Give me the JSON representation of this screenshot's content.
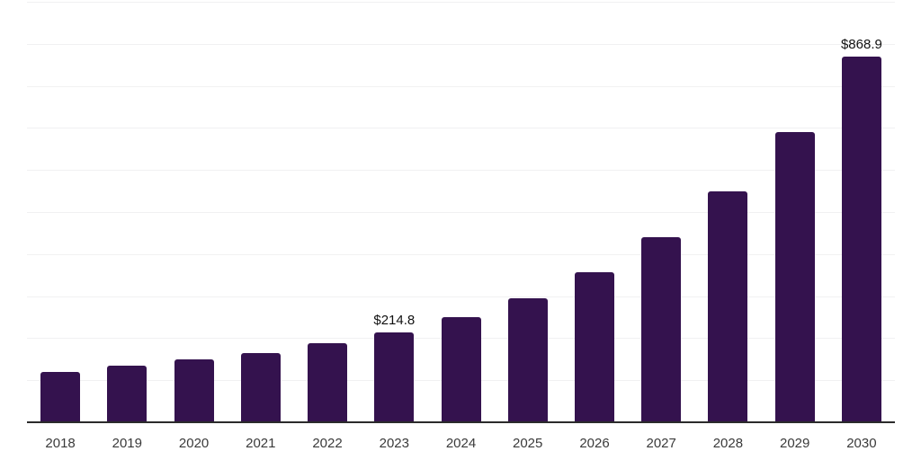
{
  "chart_data": {
    "type": "bar",
    "title": "",
    "xlabel": "",
    "ylabel": "",
    "categories": [
      "2018",
      "2019",
      "2020",
      "2021",
      "2022",
      "2023",
      "2024",
      "2025",
      "2026",
      "2027",
      "2028",
      "2029",
      "2030"
    ],
    "values": [
      119,
      134,
      149,
      164,
      188,
      214.8,
      250,
      296,
      356,
      441,
      550,
      691,
      868.9
    ],
    "labeled_points": [
      {
        "category": "2023",
        "label": "$214.8"
      },
      {
        "category": "2030",
        "label": "$868.9"
      }
    ],
    "ylim": [
      0,
      1000
    ],
    "gridline_step": 100,
    "grid": true,
    "legend": false,
    "y_axis_labels_visible": false,
    "colors": {
      "bar": "#34124E",
      "gridline": "#F1F1F2",
      "axis_line": "#2B2B2B",
      "value_label": "#111111",
      "x_tick_label": "#3A3A3A",
      "background": "#FFFFFF"
    }
  }
}
